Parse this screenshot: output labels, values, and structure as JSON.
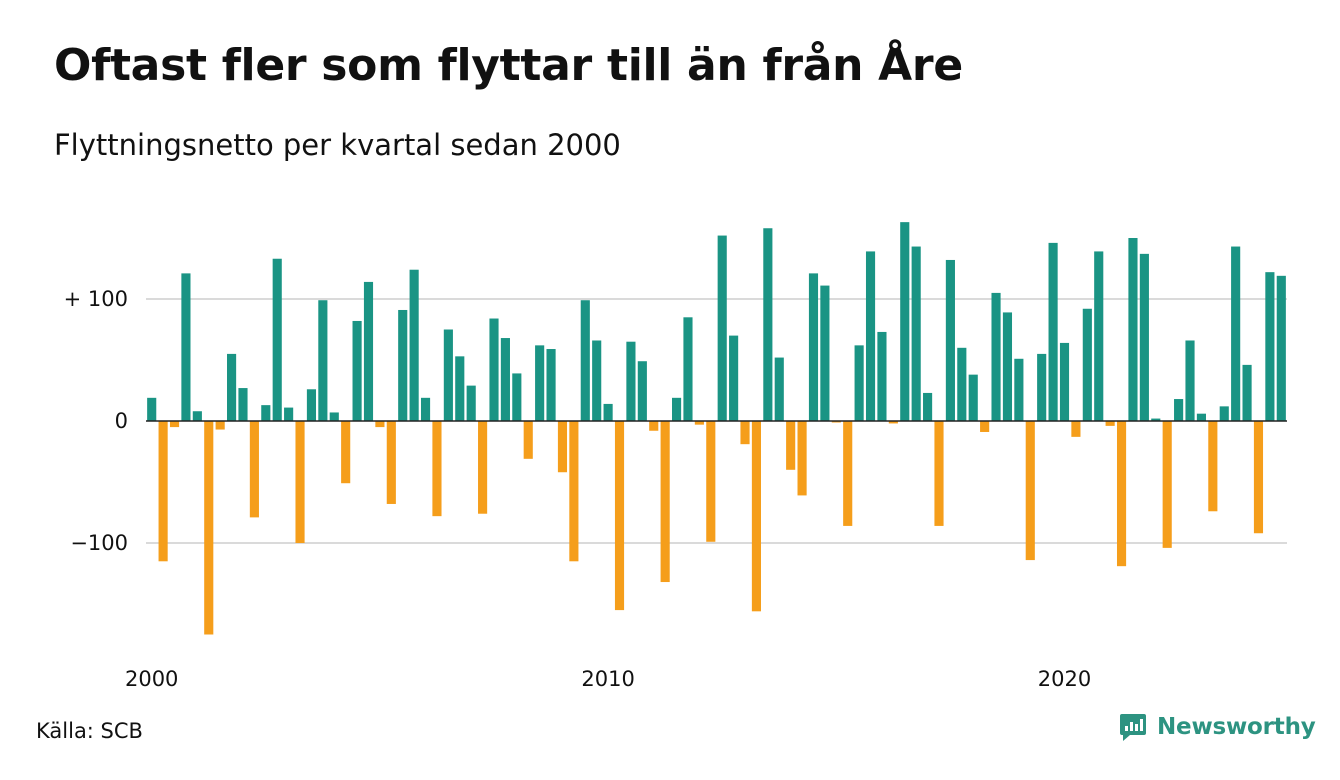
{
  "chart_data": {
    "type": "bar",
    "title": "Oftast fler som flyttar till än från Åre",
    "subtitle": "Flyttningsnetto per kvartal sedan 2000",
    "x_start": "2000 Q1",
    "x_tick_labels": [
      "2000",
      "2010",
      "2020"
    ],
    "y_tick_labels": [
      "+ 100",
      "0",
      "−100"
    ],
    "ylim": [
      -185,
      185
    ],
    "grid": true,
    "colors": {
      "positive": "#1a9484",
      "negative": "#f59e1b"
    },
    "values": [
      19,
      -115,
      -5,
      121,
      8,
      -175,
      -7,
      55,
      27,
      -79,
      13,
      133,
      11,
      -100,
      26,
      99,
      7,
      -51,
      82,
      114,
      -5,
      -68,
      91,
      124,
      19,
      -78,
      75,
      53,
      29,
      -76,
      84,
      68,
      39,
      -31,
      62,
      59,
      -42,
      -115,
      99,
      66,
      14,
      -155,
      65,
      49,
      -8,
      -132,
      19,
      85,
      -3,
      -99,
      152,
      70,
      -19,
      -156,
      158,
      52,
      -40,
      -61,
      121,
      111,
      -1,
      -86,
      62,
      139,
      73,
      -2,
      163,
      143,
      23,
      -86,
      132,
      60,
      38,
      -9,
      105,
      89,
      51,
      -114,
      55,
      146,
      64,
      -13,
      92,
      139,
      -4,
      -119,
      150,
      137,
      2,
      -104,
      18,
      66,
      6,
      -74,
      12,
      143,
      46,
      -92,
      122,
      119
    ]
  },
  "source": "Källa: SCB",
  "brand": {
    "name": "Newsworthy",
    "icon": "newsworthy-logo-icon",
    "color": "#2d9381"
  }
}
